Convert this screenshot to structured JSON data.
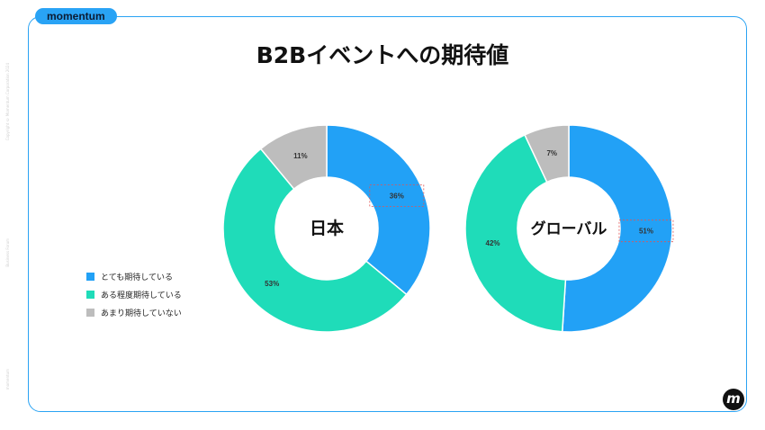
{
  "brand": "momentum",
  "side_texts": [
    "Copyright © Momentum Corporation 2024",
    "Business Forum",
    "momentum"
  ],
  "title": "B2Bイベントへの期待値",
  "colors": {
    "expect_high": "#22a1f6",
    "expect_some": "#1fdcb9",
    "expect_low": "#bdbdbd",
    "frame": "#2aa3f3",
    "highlight": "#e05555"
  },
  "chart_data": [
    {
      "type": "pie",
      "center_label": "日本",
      "title": "",
      "slices": [
        {
          "label": "とても期待している",
          "value": 36,
          "display": "36%",
          "color": "#22a1f6"
        },
        {
          "label": "ある程度期待している",
          "value": 53,
          "display": "53%",
          "color": "#1fdcb9"
        },
        {
          "label": "あまり期待していない",
          "value": 11,
          "display": "11%",
          "color": "#bdbdbd"
        }
      ],
      "legend_position": "left"
    },
    {
      "type": "pie",
      "center_label": "グローバル",
      "title": "",
      "slices": [
        {
          "label": "とても期待している",
          "value": 51,
          "display": "51%",
          "color": "#22a1f6"
        },
        {
          "label": "ある程度期待している",
          "value": 42,
          "display": "42%",
          "color": "#1fdcb9"
        },
        {
          "label": "あまり期待していない",
          "value": 7,
          "display": "7%",
          "color": "#bdbdbd"
        }
      ],
      "legend_position": "left"
    }
  ],
  "legend": [
    {
      "label": "とても期待している",
      "color": "#22a1f6"
    },
    {
      "label": "ある程度期待している",
      "color": "#1fdcb9"
    },
    {
      "label": "あまり期待していない",
      "color": "#bdbdbd"
    }
  ],
  "logo": "m"
}
